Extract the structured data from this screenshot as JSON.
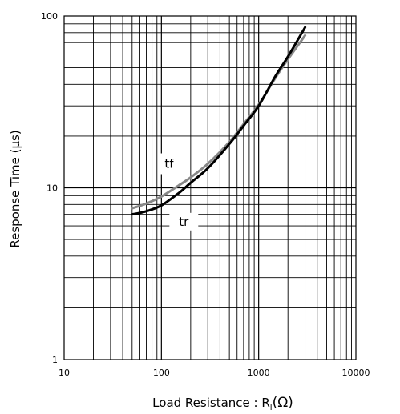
{
  "chart_data": {
    "type": "line",
    "xlabel": "Load Resistance : R",
    "xlabel_subscript": "l",
    "xlabel_unit": "(Ω)",
    "ylabel": "Response Time (μs)",
    "xscale": "log",
    "yscale": "log",
    "xlim": [
      10,
      10000
    ],
    "ylim": [
      1,
      100
    ],
    "xticks": [
      "10",
      "100",
      "1000",
      "10000"
    ],
    "yticks": [
      "1",
      "10",
      "100"
    ],
    "grid": true,
    "series": [
      {
        "name": "tf",
        "color": "#888888",
        "x": [
          50,
          70,
          100,
          150,
          200,
          300,
          500,
          700,
          1000,
          1500,
          2000,
          3000
        ],
        "y": [
          7.6,
          8.1,
          8.9,
          10.3,
          11.5,
          13.8,
          18.5,
          23.5,
          30.5,
          44,
          56,
          77
        ]
      },
      {
        "name": "tr",
        "color": "#000000",
        "x": [
          50,
          70,
          100,
          150,
          200,
          300,
          500,
          700,
          1000,
          1500,
          2000,
          3000
        ],
        "y": [
          7.0,
          7.3,
          7.9,
          9.3,
          10.7,
          13.0,
          18.0,
          23.0,
          30.0,
          45,
          58,
          86
        ]
      }
    ]
  }
}
